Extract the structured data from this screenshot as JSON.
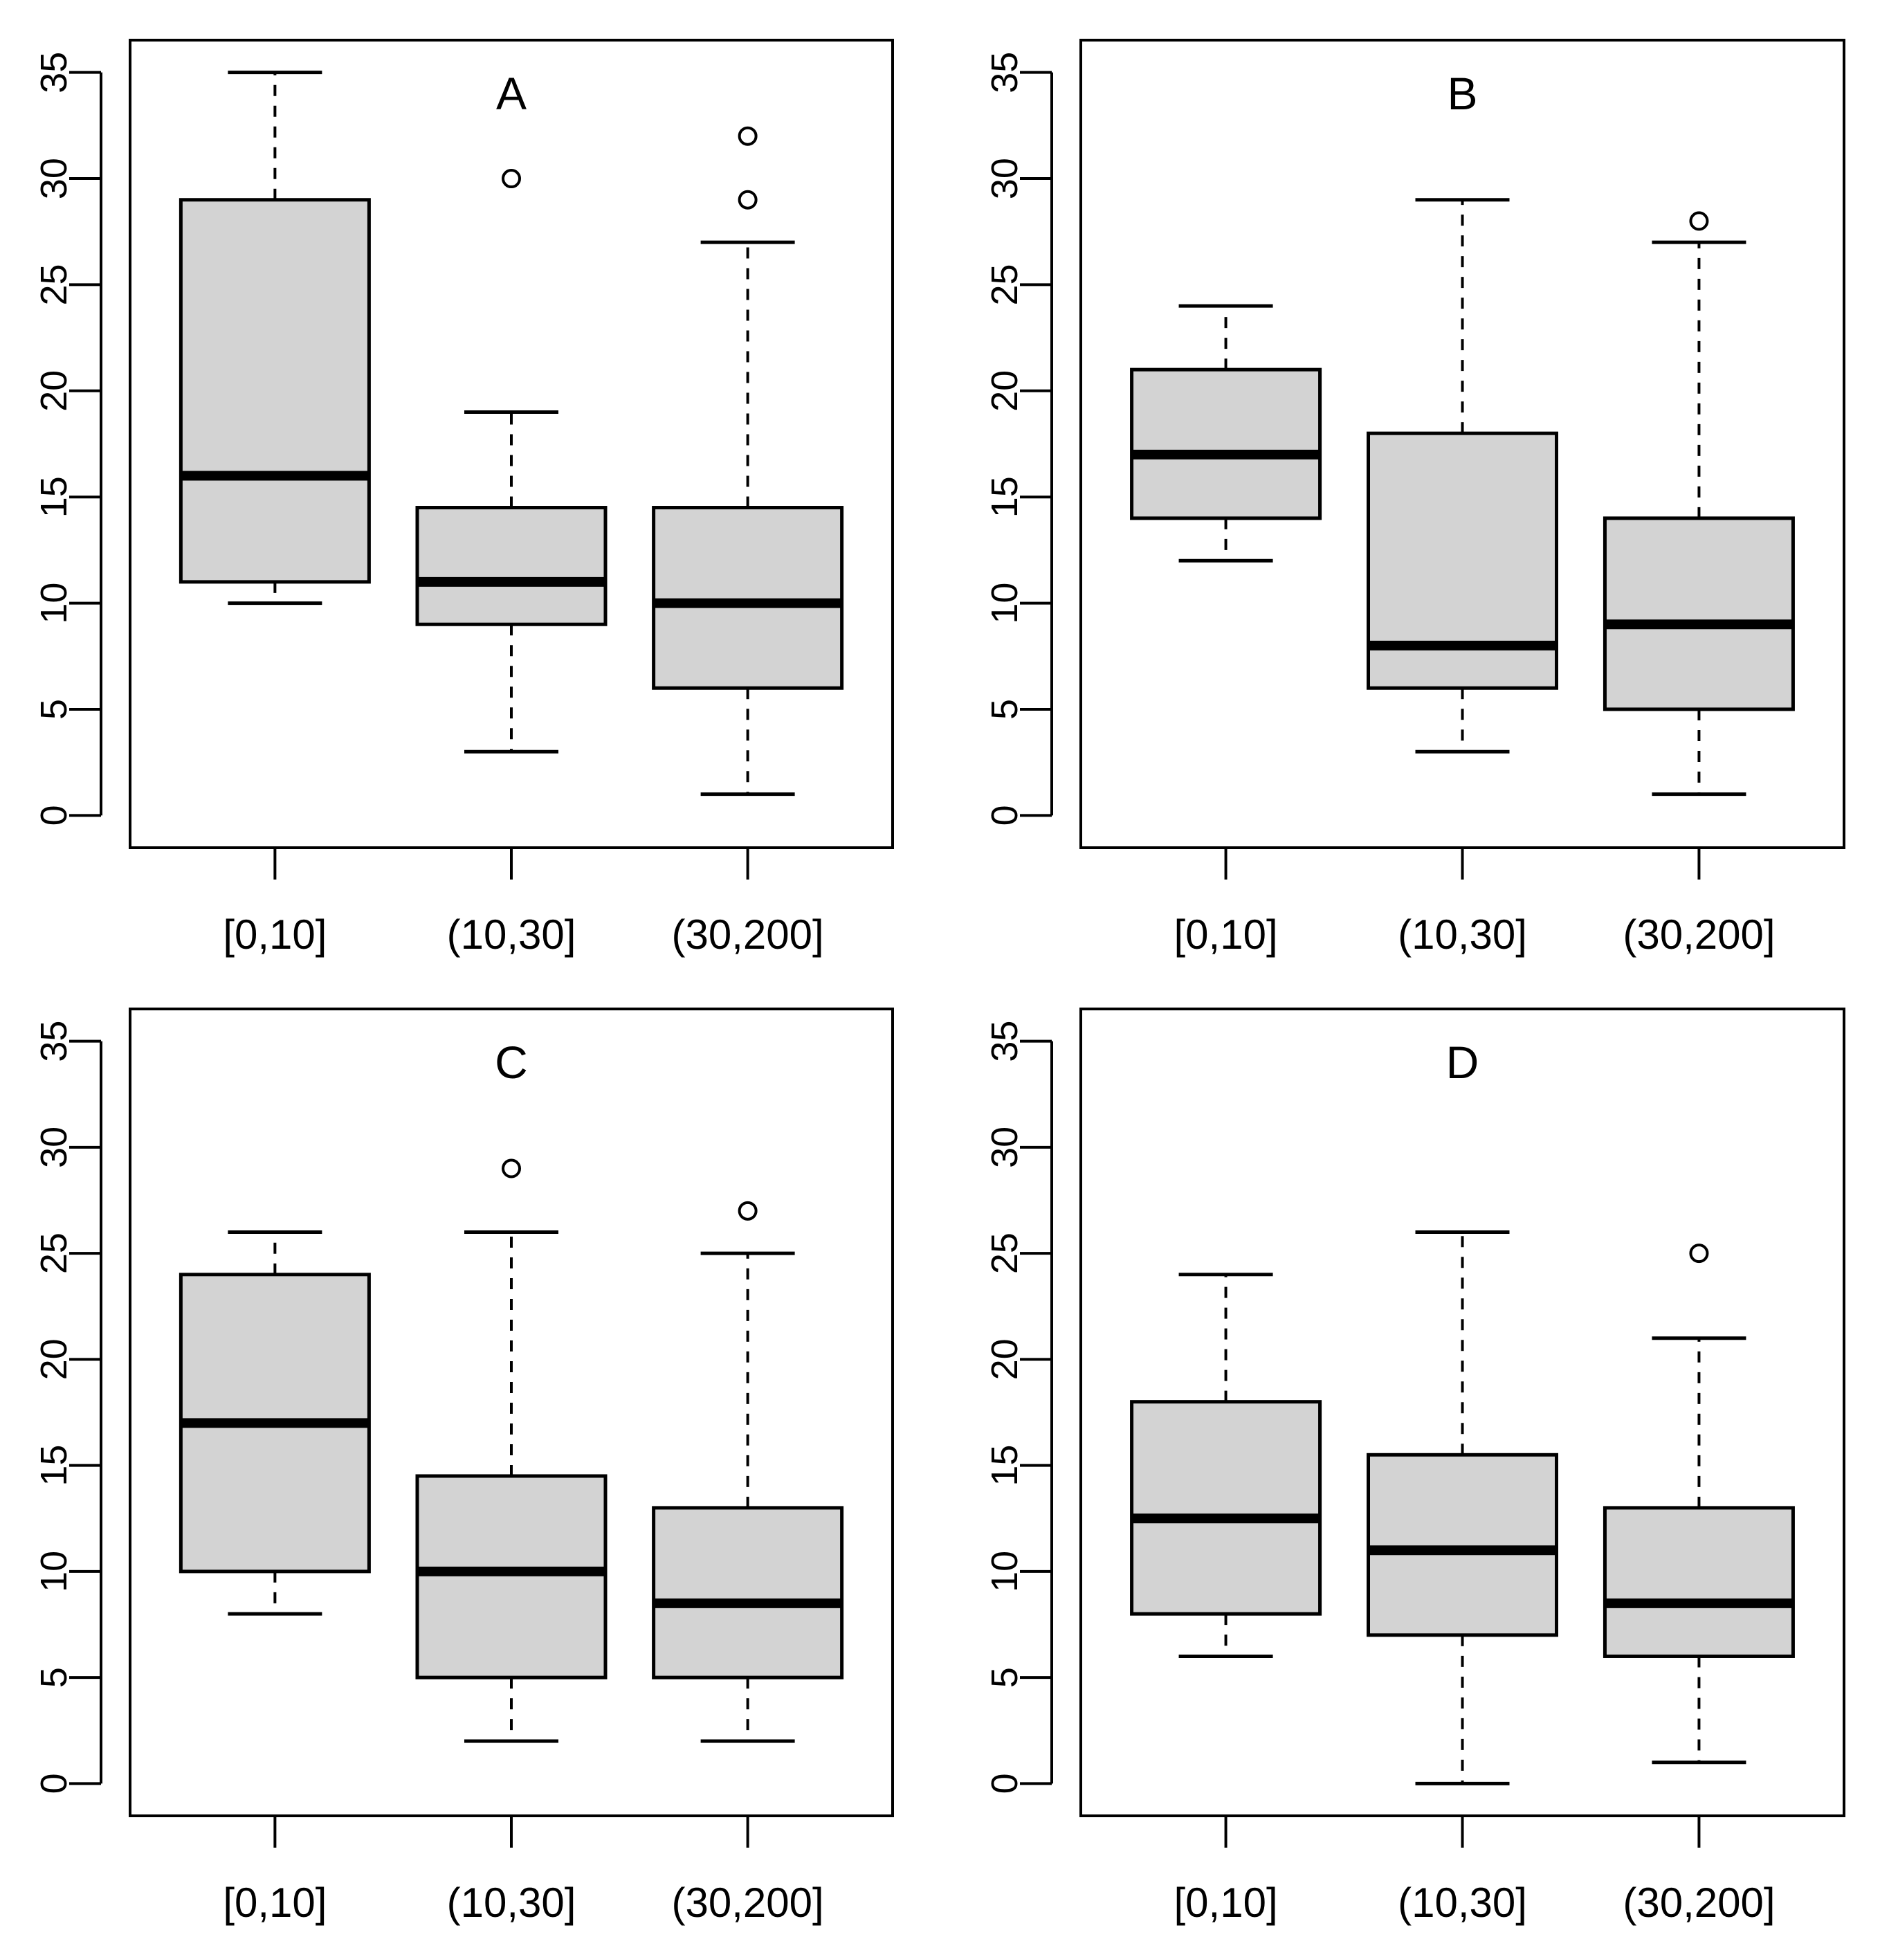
{
  "colors": {
    "background": "#ffffff",
    "box_fill": "#d3d3d3",
    "stroke": "#000000"
  },
  "chart_data": [
    {
      "type": "boxplot",
      "title": "A",
      "categories": [
        "[0,10]",
        "(10,30]",
        "(30,200]"
      ],
      "ylim": [
        0,
        35
      ],
      "yticks": [
        0,
        5,
        10,
        15,
        20,
        25,
        30,
        35
      ],
      "ytick_labels": [
        "0",
        "5",
        "10",
        "15",
        "20",
        "25",
        "30",
        "35"
      ],
      "boxes": [
        {
          "category": "[0,10]",
          "whisker_low": 10,
          "q1": 11,
          "median": 16,
          "q3": 29,
          "whisker_high": 35,
          "outliers": []
        },
        {
          "category": "(10,30]",
          "whisker_low": 3,
          "q1": 9,
          "median": 11,
          "q3": 14.5,
          "whisker_high": 19,
          "outliers": [
            30
          ]
        },
        {
          "category": "(30,200]",
          "whisker_low": 1,
          "q1": 6,
          "median": 10,
          "q3": 14.5,
          "whisker_high": 27,
          "outliers": [
            29,
            32
          ]
        }
      ]
    },
    {
      "type": "boxplot",
      "title": "B",
      "categories": [
        "[0,10]",
        "(10,30]",
        "(30,200]"
      ],
      "ylim": [
        0,
        35
      ],
      "yticks": [
        0,
        5,
        10,
        15,
        20,
        25,
        30,
        35
      ],
      "ytick_labels": [
        "0",
        "5",
        "10",
        "15",
        "20",
        "25",
        "30",
        "35"
      ],
      "boxes": [
        {
          "category": "[0,10]",
          "whisker_low": 12,
          "q1": 14,
          "median": 17,
          "q3": 21,
          "whisker_high": 24,
          "outliers": []
        },
        {
          "category": "(10,30]",
          "whisker_low": 3,
          "q1": 6,
          "median": 8,
          "q3": 18,
          "whisker_high": 29,
          "outliers": []
        },
        {
          "category": "(30,200]",
          "whisker_low": 1,
          "q1": 5,
          "median": 9,
          "q3": 14,
          "whisker_high": 27,
          "outliers": [
            28
          ]
        }
      ]
    },
    {
      "type": "boxplot",
      "title": "C",
      "categories": [
        "[0,10]",
        "(10,30]",
        "(30,200]"
      ],
      "ylim": [
        0,
        35
      ],
      "yticks": [
        0,
        5,
        10,
        15,
        20,
        25,
        30,
        35
      ],
      "ytick_labels": [
        "0",
        "5",
        "10",
        "15",
        "20",
        "25",
        "30",
        "35"
      ],
      "boxes": [
        {
          "category": "[0,10]",
          "whisker_low": 8,
          "q1": 10,
          "median": 17,
          "q3": 24,
          "whisker_high": 26,
          "outliers": []
        },
        {
          "category": "(10,30]",
          "whisker_low": 2,
          "q1": 5,
          "median": 10,
          "q3": 14.5,
          "whisker_high": 26,
          "outliers": [
            29
          ]
        },
        {
          "category": "(30,200]",
          "whisker_low": 2,
          "q1": 5,
          "median": 8.5,
          "q3": 13,
          "whisker_high": 25,
          "outliers": [
            27
          ]
        }
      ]
    },
    {
      "type": "boxplot",
      "title": "D",
      "categories": [
        "[0,10]",
        "(10,30]",
        "(30,200]"
      ],
      "ylim": [
        0,
        35
      ],
      "yticks": [
        0,
        5,
        10,
        15,
        20,
        25,
        30,
        35
      ],
      "ytick_labels": [
        "0",
        "5",
        "10",
        "15",
        "20",
        "25",
        "30",
        "35"
      ],
      "boxes": [
        {
          "category": "[0,10]",
          "whisker_low": 6,
          "q1": 8,
          "median": 12.5,
          "q3": 18,
          "whisker_high": 24,
          "outliers": []
        },
        {
          "category": "(10,30]",
          "whisker_low": 0,
          "q1": 7,
          "median": 11,
          "q3": 15.5,
          "whisker_high": 26,
          "outliers": []
        },
        {
          "category": "(30,200]",
          "whisker_low": 1,
          "q1": 6,
          "median": 8.5,
          "q3": 13,
          "whisker_high": 21,
          "outliers": [
            25
          ]
        }
      ]
    }
  ]
}
